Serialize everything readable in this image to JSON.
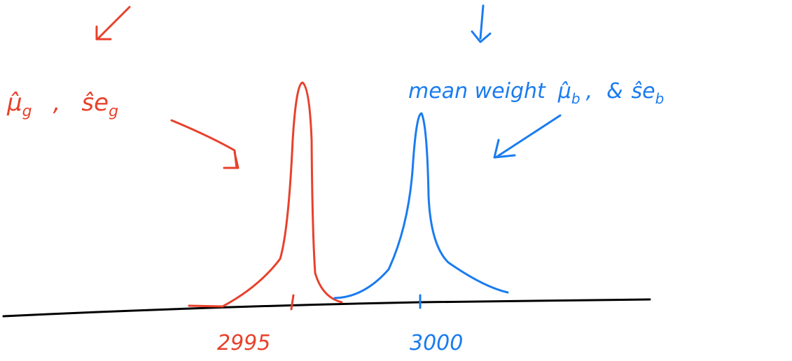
{
  "red_label": {
    "mu": "μ̂",
    "mu_sub": "g",
    "sep": ",",
    "se": "ŝe",
    "se_sub": "g"
  },
  "blue_label": {
    "prefix": "mean weight",
    "mu": "μ̂",
    "mu_sub": "b",
    "sep": ",",
    "amp": "&",
    "se": "ŝe",
    "se_sub": "b"
  },
  "axis_labels": [
    "2995",
    "3000"
  ]
}
